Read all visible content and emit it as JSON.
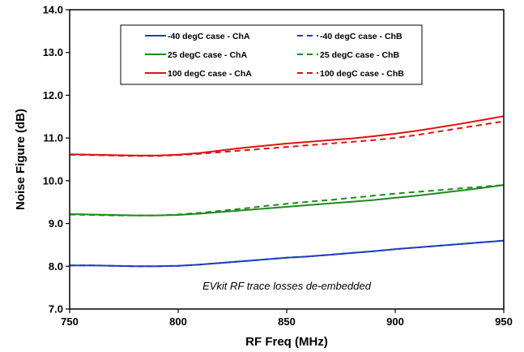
{
  "chart_data": {
    "type": "line",
    "title": "",
    "xlabel": "RF Freq (MHz)",
    "ylabel": "Noise Figure (dB)",
    "xlim": [
      750,
      950
    ],
    "ylim": [
      7.0,
      14.0
    ],
    "xticks": [
      750,
      800,
      850,
      900,
      950
    ],
    "yticks": [
      7.0,
      8.0,
      9.0,
      10.0,
      11.0,
      12.0,
      13.0,
      14.0
    ],
    "xtick_labels": [
      "750",
      "800",
      "850",
      "900",
      "950"
    ],
    "ytick_labels": [
      "7.0",
      "8.0",
      "9.0",
      "10.0",
      "11.0",
      "12.0",
      "13.0",
      "14.0"
    ],
    "grid": "none",
    "legend_placement": "top-center",
    "annotation": "EVkit RF trace losses de-embedded",
    "series": [
      {
        "name": "-40 degC case - ChA",
        "color": "#1f3fbf",
        "dash": "solid",
        "x": [
          750,
          760,
          770,
          780,
          790,
          800,
          810,
          820,
          830,
          840,
          850,
          860,
          870,
          880,
          890,
          900,
          910,
          920,
          930,
          940,
          950
        ],
        "y": [
          8.02,
          8.02,
          8.01,
          8.0,
          8.0,
          8.01,
          8.04,
          8.08,
          8.12,
          8.16,
          8.2,
          8.23,
          8.27,
          8.31,
          8.35,
          8.4,
          8.44,
          8.48,
          8.52,
          8.56,
          8.6
        ]
      },
      {
        "name": "-40 degC case - ChB",
        "color": "#1f3fbf",
        "dash": "dashed",
        "x": [
          750,
          760,
          770,
          780,
          790,
          800,
          810,
          820,
          830,
          840,
          850,
          860,
          870,
          880,
          890,
          900,
          910,
          920,
          930,
          940,
          950
        ],
        "y": [
          8.02,
          8.02,
          8.01,
          8.0,
          8.0,
          8.01,
          8.04,
          8.08,
          8.12,
          8.16,
          8.2,
          8.23,
          8.27,
          8.31,
          8.35,
          8.4,
          8.44,
          8.48,
          8.52,
          8.56,
          8.6
        ]
      },
      {
        "name": "25 degC case - ChA",
        "color": "#1e8a1e",
        "dash": "solid",
        "x": [
          750,
          760,
          770,
          780,
          790,
          800,
          810,
          820,
          830,
          840,
          850,
          860,
          870,
          880,
          890,
          900,
          910,
          920,
          930,
          940,
          950
        ],
        "y": [
          9.22,
          9.21,
          9.2,
          9.19,
          9.19,
          9.2,
          9.23,
          9.27,
          9.31,
          9.35,
          9.39,
          9.43,
          9.47,
          9.51,
          9.55,
          9.6,
          9.65,
          9.71,
          9.77,
          9.83,
          9.9
        ]
      },
      {
        "name": "25 degC case - ChB",
        "color": "#1e8a1e",
        "dash": "dashed",
        "x": [
          750,
          760,
          770,
          780,
          790,
          800,
          810,
          820,
          830,
          840,
          850,
          860,
          870,
          880,
          890,
          900,
          910,
          920,
          930,
          940,
          950
        ],
        "y": [
          9.21,
          9.2,
          9.19,
          9.19,
          9.19,
          9.21,
          9.25,
          9.3,
          9.35,
          9.41,
          9.46,
          9.51,
          9.55,
          9.6,
          9.65,
          9.7,
          9.74,
          9.78,
          9.82,
          9.86,
          9.9
        ]
      },
      {
        "name": "100 degC case - ChA",
        "color": "#e01010",
        "dash": "solid",
        "x": [
          750,
          760,
          770,
          780,
          790,
          800,
          810,
          820,
          830,
          840,
          850,
          860,
          870,
          880,
          890,
          900,
          910,
          920,
          930,
          940,
          950
        ],
        "y": [
          10.62,
          10.61,
          10.6,
          10.59,
          10.59,
          10.61,
          10.65,
          10.71,
          10.77,
          10.82,
          10.87,
          10.91,
          10.95,
          10.99,
          11.04,
          11.1,
          11.17,
          11.25,
          11.33,
          11.42,
          11.51
        ]
      },
      {
        "name": "100 degC case - ChB",
        "color": "#e01010",
        "dash": "dashed",
        "x": [
          750,
          760,
          770,
          780,
          790,
          800,
          810,
          820,
          830,
          840,
          850,
          860,
          870,
          880,
          890,
          900,
          910,
          920,
          930,
          940,
          950
        ],
        "y": [
          10.61,
          10.6,
          10.59,
          10.58,
          10.58,
          10.6,
          10.63,
          10.67,
          10.71,
          10.75,
          10.79,
          10.83,
          10.87,
          10.91,
          10.95,
          11.0,
          11.07,
          11.15,
          11.23,
          11.31,
          11.39
        ]
      }
    ]
  }
}
